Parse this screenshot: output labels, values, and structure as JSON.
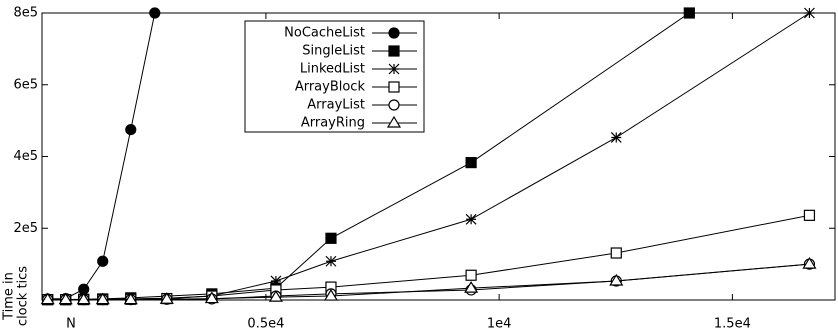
{
  "chart_data": {
    "type": "line",
    "xlabel": "N",
    "ylabel": [
      "Time in",
      "clock tics"
    ],
    "xlim": [
      200,
      17200
    ],
    "ylim": [
      0,
      800000
    ],
    "xticks": [
      {
        "value": 5000,
        "label": "0.5e4"
      },
      {
        "value": 10000,
        "label": "1e4"
      },
      {
        "value": 15000,
        "label": "1.5e4"
      }
    ],
    "yticks": [
      {
        "value": 200000,
        "label": "2e5"
      },
      {
        "value": 400000,
        "label": "4e5"
      },
      {
        "value": 600000,
        "label": "6e5"
      },
      {
        "value": 800000,
        "label": "8e5"
      }
    ],
    "legend": "top-center",
    "series": [
      {
        "name": "NoCacheList",
        "color": "#000000",
        "marker": "circle-filled",
        "x": [
          322,
          708,
          1094,
          1502,
          2103,
          2618
        ],
        "values": [
          3000,
          4000,
          30000,
          108000,
          475000,
          800000
        ]
      },
      {
        "name": "SingleList",
        "color": "#000000",
        "marker": "square-filled",
        "x": [
          322,
          708,
          1094,
          1502,
          2103,
          3841,
          5215,
          6395,
          9399,
          14077
        ],
        "values": [
          1000,
          1000,
          2000,
          3000,
          6000,
          17000,
          33000,
          172000,
          383000,
          800000
        ]
      },
      {
        "name": "LinkedList",
        "color": "#000000",
        "marker": "star",
        "x": [
          322,
          708,
          1094,
          1502,
          2103,
          2876,
          3841,
          5215,
          6395,
          9399,
          12511,
          16652
        ],
        "values": [
          1000,
          1000,
          1000,
          2000,
          3000,
          5000,
          11000,
          53000,
          108000,
          225000,
          453000,
          800000
        ]
      },
      {
        "name": "ArrayBlock",
        "color": "#000000",
        "marker": "square-open",
        "x": [
          322,
          708,
          1094,
          1502,
          2103,
          2876,
          3841,
          5215,
          6395,
          9399,
          12511,
          16652
        ],
        "values": [
          1000,
          1000,
          1000,
          1000,
          2000,
          4000,
          11000,
          28000,
          36000,
          69000,
          131000,
          236000
        ]
      },
      {
        "name": "ArrayList",
        "color": "#000000",
        "marker": "circle-open",
        "x": [
          322,
          708,
          1094,
          1502,
          2103,
          2876,
          3841,
          5215,
          6395,
          9399,
          12511,
          16652
        ],
        "values": [
          1000,
          1000,
          1000,
          1000,
          1000,
          2000,
          3000,
          11000,
          17000,
          28000,
          53000,
          100000
        ]
      },
      {
        "name": "ArrayRing",
        "color": "#000000",
        "marker": "triangle-open",
        "x": [
          322,
          708,
          1094,
          1502,
          2103,
          2876,
          3841,
          5215,
          6395,
          9399,
          12511,
          16652
        ],
        "values": [
          1000,
          1000,
          1000,
          1000,
          1000,
          2000,
          4000,
          8000,
          11000,
          33000,
          53000,
          100000
        ]
      }
    ]
  }
}
